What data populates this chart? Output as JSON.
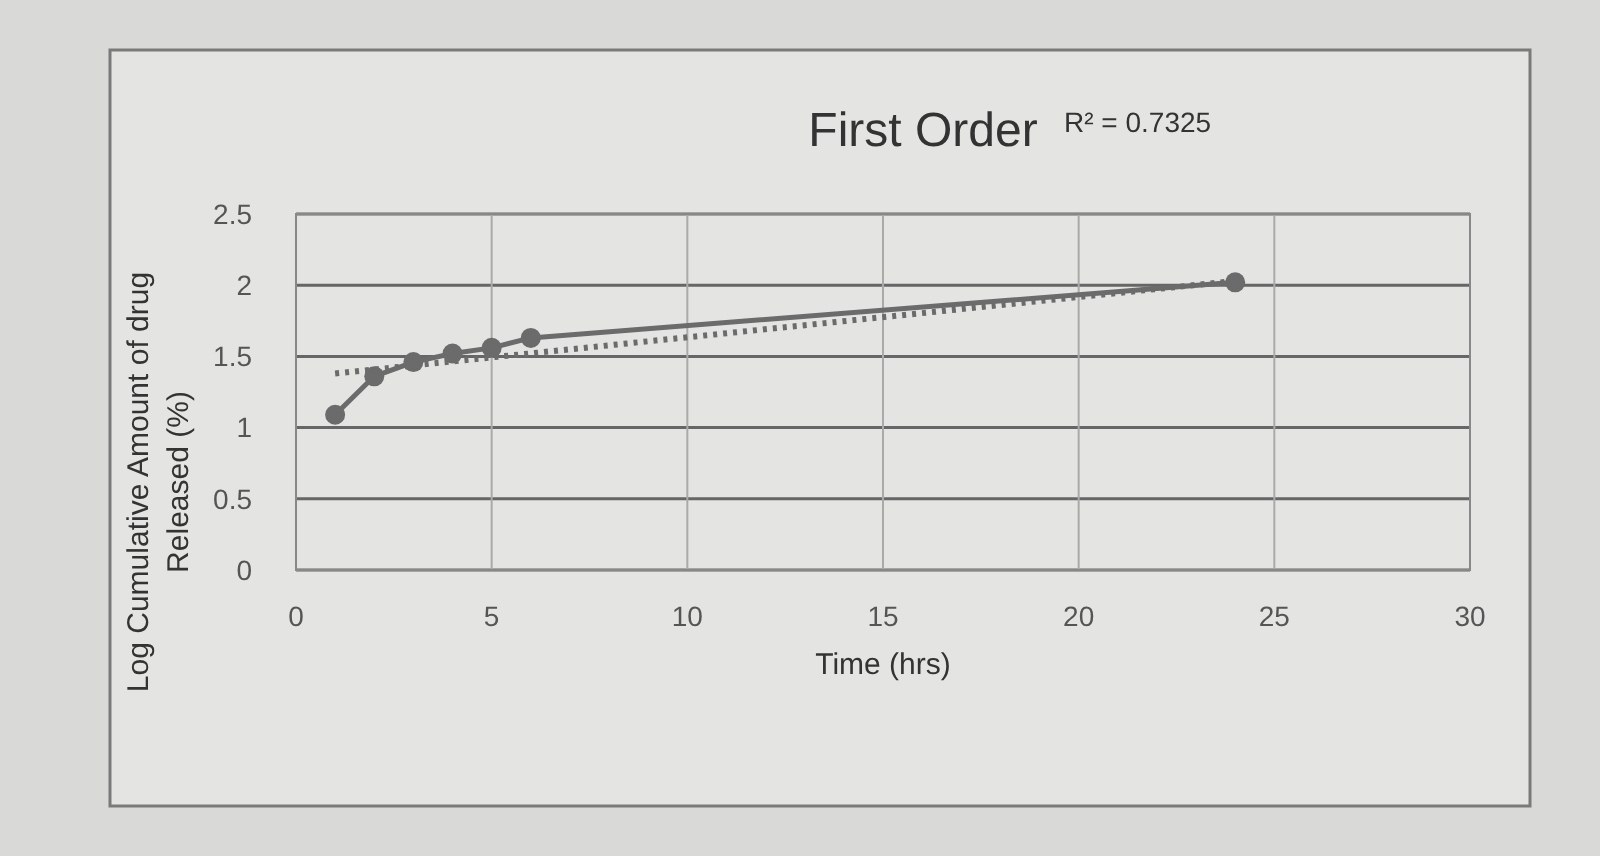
{
  "chart_data": {
    "type": "line",
    "title": "First Order",
    "xlabel": "Time (hrs)",
    "ylabel": "Log Cumulative Amount of drug Released (%)",
    "annotations": [
      "R² = 0.7325"
    ],
    "series": [
      {
        "color": "#6b6b6b",
        "x": [
          1,
          2,
          3,
          4,
          5,
          6,
          24
        ],
        "values": [
          1.09,
          1.36,
          1.46,
          1.52,
          1.56,
          1.63,
          2.02
        ],
        "marker": "circle",
        "line_style": "solid"
      },
      {
        "type": "line",
        "color": "#6b6b6b",
        "x": [
          1,
          24
        ],
        "values": [
          1.38,
          2.03
        ],
        "marker": "none",
        "line_style": "dotted"
      }
    ],
    "xlim": [
      0,
      30
    ],
    "xticks": [
      0,
      5,
      10,
      15,
      20,
      25,
      30
    ],
    "ylim": [
      0,
      2.5
    ],
    "yticks": [
      0,
      0.5,
      1,
      1.5,
      2,
      2.5
    ],
    "grid": true
  }
}
